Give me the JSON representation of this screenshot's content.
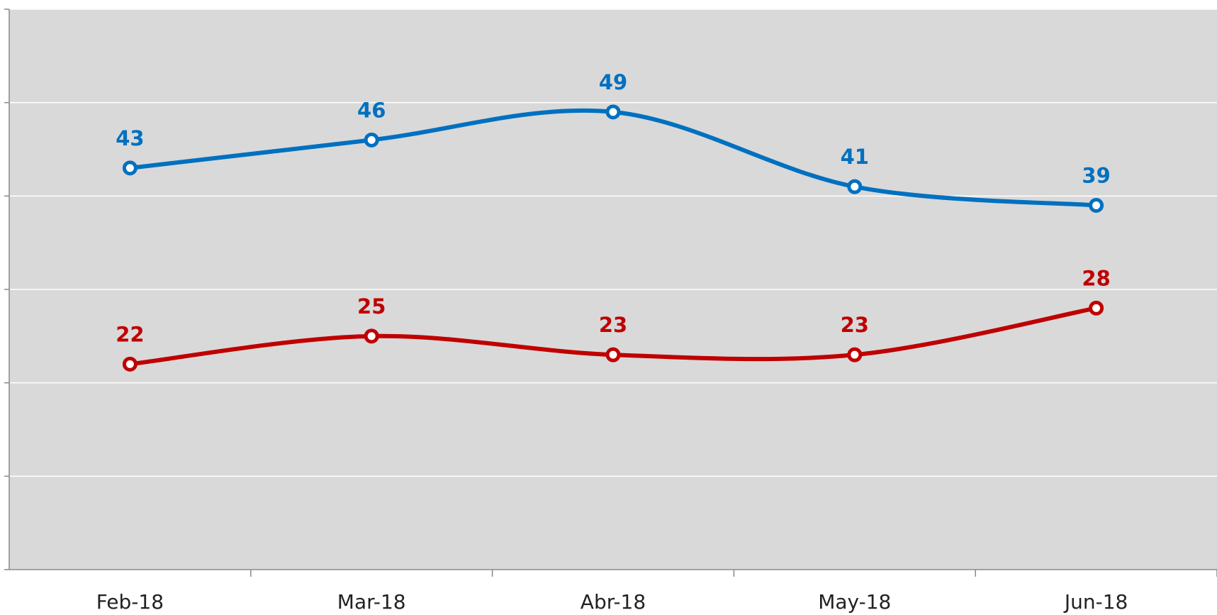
{
  "chart_data": {
    "type": "line",
    "categories": [
      "Feb-18",
      "Mar-18",
      "Abr-18",
      "May-18",
      "Jun-18"
    ],
    "series": [
      {
        "color": "#0070c0",
        "values": [
          43,
          46,
          49,
          41,
          39
        ]
      },
      {
        "color": "#c00000",
        "values": [
          22,
          25,
          23,
          23,
          28
        ]
      }
    ],
    "ylim": [
      0,
      60
    ],
    "yticks": [
      0,
      10,
      20,
      30,
      40,
      50,
      60
    ],
    "grid": true,
    "smooth": true
  }
}
